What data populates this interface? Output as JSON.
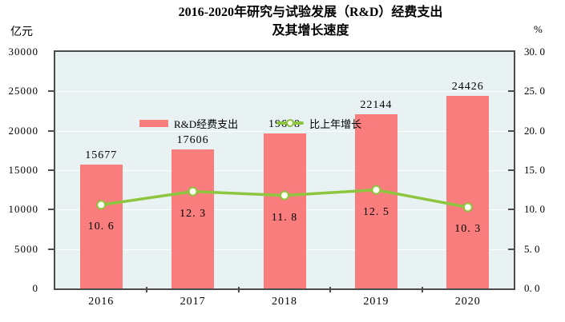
{
  "title": {
    "line1": "2016-2020年研究与试验发展（R&D）经费支出",
    "line2": "及其增长速度"
  },
  "axes": {
    "left_unit": "亿元",
    "right_unit": "%",
    "left_ticks": [
      "30000",
      "25000",
      "20000",
      "15000",
      "10000",
      "5000",
      "0"
    ],
    "right_ticks": [
      "30. 0",
      "25. 0",
      "20. 0",
      "15. 0",
      "10. 0",
      "5. 0",
      "0. 0"
    ]
  },
  "legend": {
    "bar_label": "R&D经费支出",
    "line_label": "比上年增长"
  },
  "colors": {
    "bar": "#fa7d7d",
    "line": "#8cc63e",
    "marker_fill": "#fffef2",
    "plot_bg": "#e9f2f2",
    "grid": "#ffffff",
    "frame": "#4c4c4c"
  },
  "chart_data": {
    "type": "bar+line",
    "title": "2016-2020年研究与试验发展（R&D）经费支出及其增长速度",
    "categories": [
      "2016",
      "2017",
      "2018",
      "2019",
      "2020"
    ],
    "series": [
      {
        "name": "R&D经费支出",
        "type": "bar",
        "axis": "left",
        "unit": "亿元",
        "values": [
          15677,
          17606,
          19678,
          22144,
          24426
        ],
        "labels": [
          "15677",
          "17606",
          "19678",
          "22144",
          "24426"
        ],
        "color": "#fa7d7d"
      },
      {
        "name": "比上年增长",
        "type": "line",
        "axis": "right",
        "unit": "%",
        "values": [
          10.6,
          12.3,
          11.8,
          12.5,
          10.3
        ],
        "labels": [
          "10. 6",
          "12. 3",
          "11. 8",
          "12. 5",
          "10. 3"
        ],
        "color": "#8cc63e"
      }
    ],
    "left_ylim": [
      0,
      30000
    ],
    "left_tick_step": 5000,
    "right_ylim": [
      0,
      30
    ],
    "right_tick_step": 5,
    "grid": true,
    "legend_position": "top-left-inside"
  }
}
